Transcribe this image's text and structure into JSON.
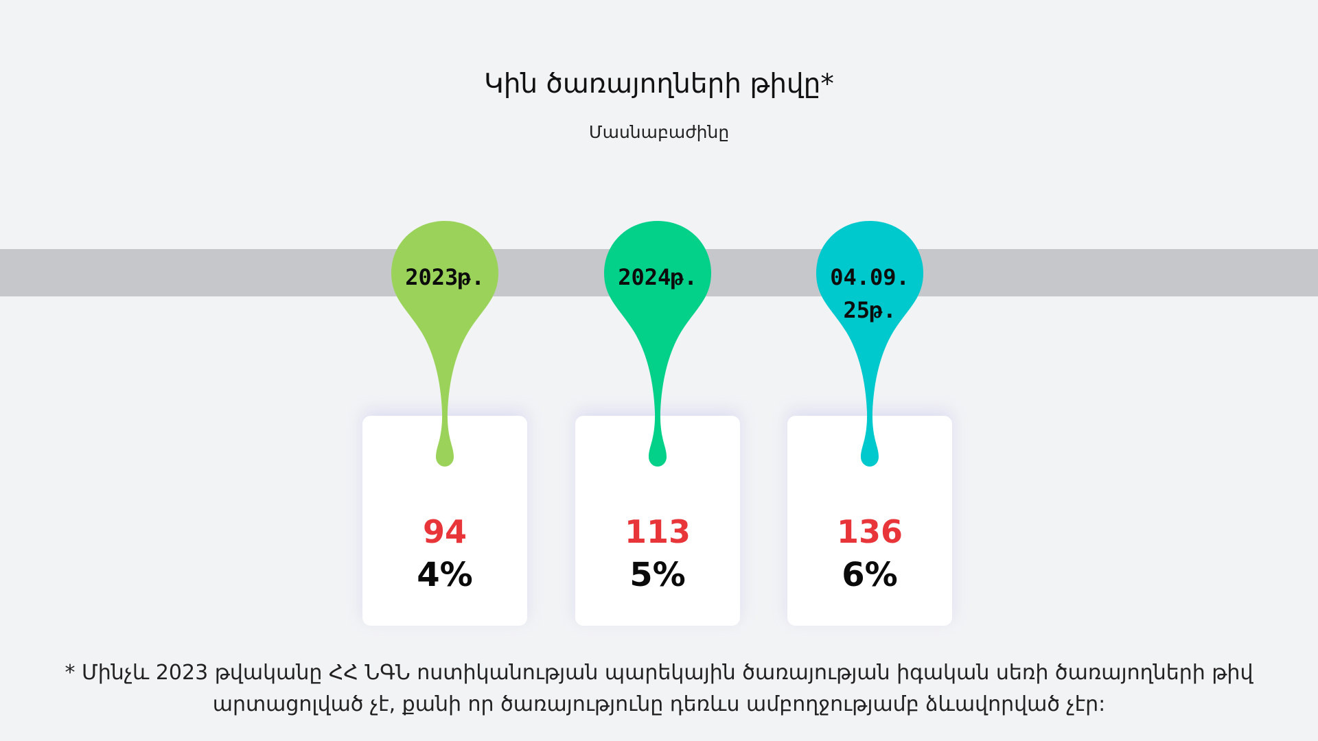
{
  "title": "Կին ծառայողների թիվը*",
  "subtitle": "Մասնաբաժինը",
  "pins": [
    {
      "label": "2023թ.",
      "color": "#9bd35a",
      "count": "94",
      "percent": "4%"
    },
    {
      "label": "2024թ.",
      "color": "#03d18a",
      "count": "113",
      "percent": "5%"
    },
    {
      "label": "04.09.\n25թ.",
      "color": "#00c9cd",
      "count": "136",
      "percent": "6%"
    }
  ],
  "footnote": "* Մինչև 2023 թվականը ՀՀ ՆԳՆ ոստիկանության պարեկային ծառայության իգական սեռի ծառայողների թիվ արտացոլված չէ, քանի որ ծառայությունը դեռևս ամբողջությամբ ձևավորված չէր:",
  "colors": {
    "background": "#f2f3f5",
    "band": "#c6c7ca",
    "count": "#e8353a"
  }
}
